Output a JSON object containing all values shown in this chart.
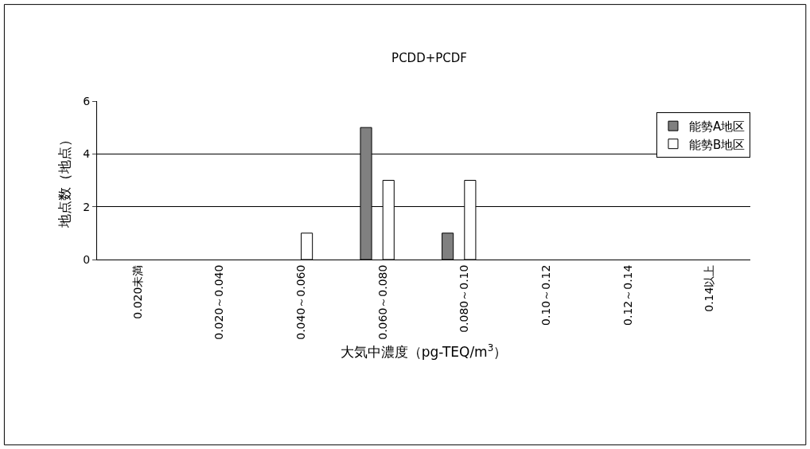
{
  "chart_data": {
    "type": "bar",
    "title": "PCDD+PCDF",
    "xlabel": "大気中濃度（pg-TEQ/m$^{3}$）",
    "ylabel": "地点数（地点）",
    "categories": [
      "0.020未満",
      "0.020～0.040",
      "0.040～0.060",
      "0.060～0.080",
      "0.080～0.10",
      "0.10～0.12",
      "0.12～0.14",
      "0.14以上"
    ],
    "series": [
      {
        "name": "能勢A地区",
        "color": "#808080",
        "values": [
          0,
          0,
          0,
          5,
          1,
          0,
          0,
          0
        ]
      },
      {
        "name": "能勢B地区",
        "color": "#ffffff",
        "values": [
          0,
          0,
          1,
          3,
          3,
          0,
          0,
          0
        ]
      }
    ],
    "ylim": [
      0,
      6
    ],
    "yticks": [
      0,
      2,
      4,
      6
    ],
    "grid": "y",
    "legend": "top right"
  }
}
